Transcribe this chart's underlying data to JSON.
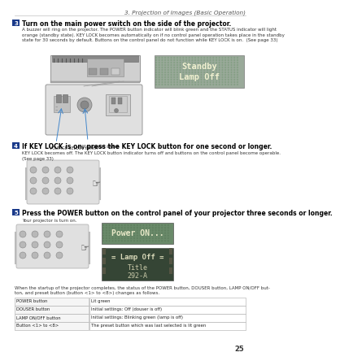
{
  "page_header": "3. Projection of Images (Basic Operation)",
  "page_number": "25",
  "background_color": "#ffffff",
  "step3": {
    "number": "3",
    "title": "Turn on the main power switch on the side of the projector.",
    "body": "A buzzer will ring on the projector. The POWER button indicator will blink green and the STATUS indicator will light\norange (standby state). KEY LOCK becomes automatically on if no control panel operation takes place in the standby\nstate for 30 seconds by default. Buttons on the control panel do not function while KEY LOCK is on.  (See page 33)",
    "label1": "VOLTAGE SELECT switch",
    "label2": "Main power switch",
    "display_line1": "Standby",
    "display_line2": "Lamp Off"
  },
  "step4": {
    "number": "4",
    "title": "If KEY LOCK is on, press the KEY LOCK button for one second or longer.",
    "body": "KEY LOCK becomes off. The KEY LOCK button indicator turns off and buttons on the control panel become operable.\n(See page 33)"
  },
  "step5": {
    "number": "5",
    "title": "Press the POWER button on the control panel of your projector three seconds or longer.",
    "body": "Your projector is turn on.",
    "display1_line1": "Power ON...",
    "display2_line1": "Lamp Off",
    "display2_line2": "Title",
    "display2_line3": "292-A"
  },
  "footer_text": "When the startup of the projector completes, the status of the POWER button, DOUSER button, LAMP ON/OFF but-\nton, and preset button (button <1> to <8>) changes as follows.",
  "table_rows": [
    [
      "POWER button",
      "Lit green"
    ],
    [
      "DOUSER button",
      "Initial settings: Off (douser is off)"
    ],
    [
      "LAMP ON/OFF button",
      "Initial settings: Blinking green (lamp is off)"
    ],
    [
      "Button <1> to <8>",
      "The preset button which was last selected is lit green"
    ]
  ],
  "header_line_color": "#cccccc",
  "step_box_color": "#1a3a8a",
  "body_text_color": "#333333",
  "display_bg": "#8aaa8a",
  "display_text": "#e8e8d0",
  "display2_bg": "#3a5a3a",
  "panel_bg": "#d8d8d8",
  "panel_border": "#aaaaaa",
  "proj_body": "#c8c8c8",
  "arrow_color": "#4488cc",
  "table_border": "#aaaaaa",
  "table_header_bg": "#e8e8e8"
}
